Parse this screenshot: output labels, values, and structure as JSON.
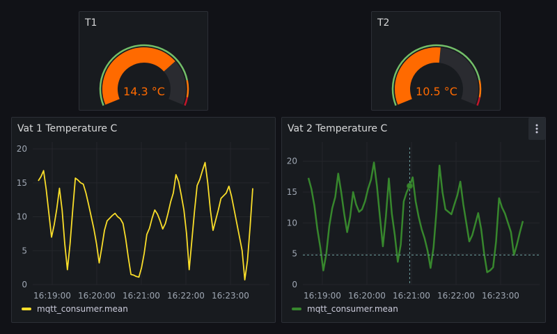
{
  "gauges": [
    {
      "title": "T1",
      "value": 14.3,
      "value_label": "14.3 °C",
      "min": 0,
      "max": 20,
      "color": "#ff6a00",
      "threshold_warn": 17,
      "threshold_crit": 19
    },
    {
      "title": "T2",
      "value": 10.5,
      "value_label": "10.5 °C",
      "min": 0,
      "max": 20,
      "color": "#ff6a00",
      "threshold_warn": 17,
      "threshold_crit": 19
    }
  ],
  "threshold_colors": {
    "ok": "#73bf69",
    "warn": "#ff780a",
    "crit": "#c4162a",
    "track": "#2a2b30"
  },
  "chart_data": [
    {
      "type": "line",
      "title": "Vat 1 Temperature C",
      "ylim": [
        0,
        20
      ],
      "yticks": [
        "0",
        "5",
        "10",
        "15",
        "20"
      ],
      "xticks": [
        "16:19:00",
        "16:20:00",
        "16:21:00",
        "16:22:00",
        "16:23:00"
      ],
      "color": "#fade2a",
      "series": [
        {
          "name": "mqtt_consumer.mean",
          "values": [
            15.3,
            15.9,
            16.8,
            14.0,
            10.5,
            7.0,
            8.8,
            11.2,
            14.2,
            11.0,
            6.0,
            2.2,
            6.0,
            11.0,
            15.7,
            15.4,
            15.0,
            14.8,
            13.5,
            11.8,
            10.0,
            8.2,
            6.0,
            3.2,
            5.5,
            8.0,
            9.4,
            9.8,
            10.2,
            10.5,
            10.0,
            9.7,
            9.0,
            6.8,
            4.0,
            1.5,
            1.4,
            1.2,
            1.1,
            2.5,
            4.6,
            7.4,
            8.3,
            9.8,
            11.0,
            10.4,
            9.4,
            8.2,
            9.0,
            10.5,
            12.2,
            13.5,
            16.2,
            15.2,
            13.2,
            11.0,
            7.5,
            2.2,
            6.5,
            10.8,
            14.6,
            15.5,
            16.8,
            18.0,
            15.0,
            11.0,
            8.0,
            9.5,
            11.0,
            12.7,
            13.1,
            13.5,
            14.5,
            13.0,
            11.0,
            9.0,
            7.0,
            5.0,
            0.7,
            3.5,
            8.5,
            14.2
          ]
        }
      ]
    },
    {
      "type": "line",
      "title": "Vat 2 Temperature C",
      "ylim": [
        0,
        22
      ],
      "yticks": [
        "0",
        "5",
        "10",
        "15",
        "20"
      ],
      "xticks": [
        "16:19:00",
        "16:20:00",
        "16:21:00",
        "16:22:00",
        "16:23:00"
      ],
      "color": "#37872d",
      "series": [
        {
          "name": "mqtt_consumer.mean",
          "values": [
            17.3,
            15.5,
            12.8,
            9.0,
            6.0,
            2.3,
            5.0,
            9.5,
            12.4,
            14.2,
            18.0,
            15.0,
            11.5,
            8.5,
            11.0,
            15.0,
            13.0,
            11.8,
            12.2,
            13.5,
            15.5,
            17.0,
            19.8,
            16.0,
            11.0,
            6.2,
            11.0,
            17.2,
            11.5,
            8.0,
            3.7,
            6.5,
            13.5,
            15.0,
            16.0,
            17.4,
            13.5,
            11.0,
            9.0,
            7.5,
            5.5,
            2.7,
            6.0,
            12.0,
            19.3,
            15.0,
            12.2,
            11.8,
            11.4,
            13.0,
            14.5,
            16.7,
            13.0,
            10.0,
            7.0,
            8.0,
            9.8,
            11.6,
            9.0,
            5.0,
            2.0,
            2.3,
            2.8,
            7.0,
            14.0,
            12.5,
            11.5,
            10.0,
            8.5,
            4.8,
            6.5,
            8.5,
            10.3
          ]
        }
      ]
    }
  ],
  "legend_color_vat1": "#fade2a",
  "legend_color_vat2": "#37872d"
}
